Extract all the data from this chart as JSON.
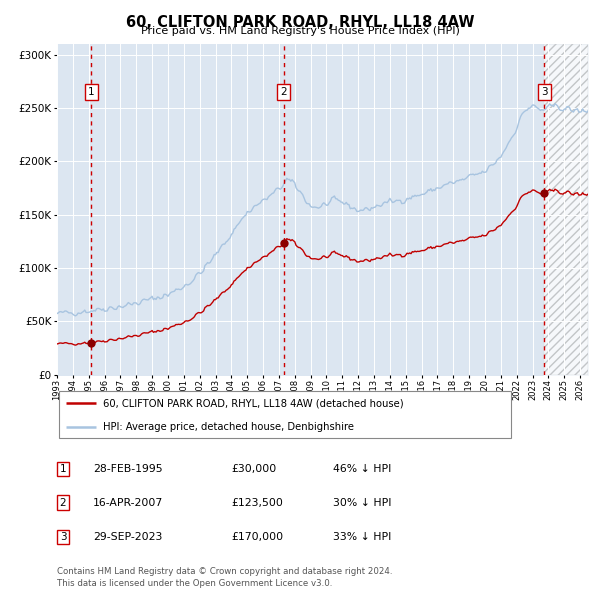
{
  "title": "60, CLIFTON PARK ROAD, RHYL, LL18 4AW",
  "subtitle": "Price paid vs. HM Land Registry's House Price Index (HPI)",
  "sale_dates_decimal": [
    1995.163,
    2007.292,
    2023.747
  ],
  "sale_prices": [
    30000,
    123500,
    170000
  ],
  "sale_labels": [
    "1",
    "2",
    "3"
  ],
  "table_rows": [
    {
      "num": "1",
      "date": "28-FEB-1995",
      "price": "£30,000",
      "hpi": "46% ↓ HPI"
    },
    {
      "num": "2",
      "date": "16-APR-2007",
      "price": "£123,500",
      "hpi": "30% ↓ HPI"
    },
    {
      "num": "3",
      "date": "29-SEP-2023",
      "price": "£170,000",
      "hpi": "33% ↓ HPI"
    }
  ],
  "legend_line1": "60, CLIFTON PARK ROAD, RHYL, LL18 4AW (detached house)",
  "legend_line2": "HPI: Average price, detached house, Denbighshire",
  "footer": "Contains HM Land Registry data © Crown copyright and database right 2024.\nThis data is licensed under the Open Government Licence v3.0.",
  "hpi_color": "#a8c4e0",
  "price_color": "#c00000",
  "bg_color": "#dce6f1",
  "grid_color": "#ffffff",
  "ylim": [
    0,
    310000
  ],
  "xlim_left": 1993.0,
  "xlim_right": 2026.5,
  "split_x": 2023.747,
  "hpi_anchors_t": [
    1993.0,
    1993.5,
    1994.0,
    1994.5,
    1995.0,
    1995.5,
    1996.0,
    1996.5,
    1997.0,
    1997.5,
    1998.0,
    1998.5,
    1999.0,
    1999.5,
    2000.0,
    2000.5,
    2001.0,
    2001.5,
    2002.0,
    2002.5,
    2003.0,
    2003.5,
    2004.0,
    2004.5,
    2005.0,
    2005.5,
    2006.0,
    2006.5,
    2007.0,
    2007.5,
    2008.0,
    2008.5,
    2009.0,
    2009.5,
    2010.0,
    2010.5,
    2011.0,
    2011.5,
    2012.0,
    2012.5,
    2013.0,
    2013.5,
    2014.0,
    2014.5,
    2015.0,
    2015.5,
    2016.0,
    2016.5,
    2017.0,
    2017.5,
    2018.0,
    2018.5,
    2019.0,
    2019.5,
    2020.0,
    2020.5,
    2021.0,
    2021.5,
    2022.0,
    2022.5,
    2023.0,
    2023.5,
    2024.0,
    2024.5,
    2025.0,
    2025.5,
    2026.0,
    2026.5
  ],
  "hpi_anchors_v": [
    57000,
    58000,
    58500,
    59000,
    60000,
    61000,
    62000,
    63000,
    64000,
    65500,
    67000,
    69000,
    71000,
    73000,
    75000,
    79000,
    83000,
    88000,
    95000,
    103000,
    112000,
    122000,
    132000,
    143000,
    152000,
    158000,
    163000,
    168000,
    174000,
    183000,
    178000,
    168000,
    158000,
    157000,
    160000,
    163000,
    162000,
    158000,
    154000,
    155000,
    157000,
    160000,
    162000,
    163000,
    165000,
    167000,
    169000,
    172000,
    175000,
    178000,
    180000,
    182000,
    185000,
    188000,
    190000,
    197000,
    205000,
    218000,
    232000,
    248000,
    252000,
    248000,
    250000,
    252000,
    250000,
    248000,
    247000,
    248000
  ]
}
